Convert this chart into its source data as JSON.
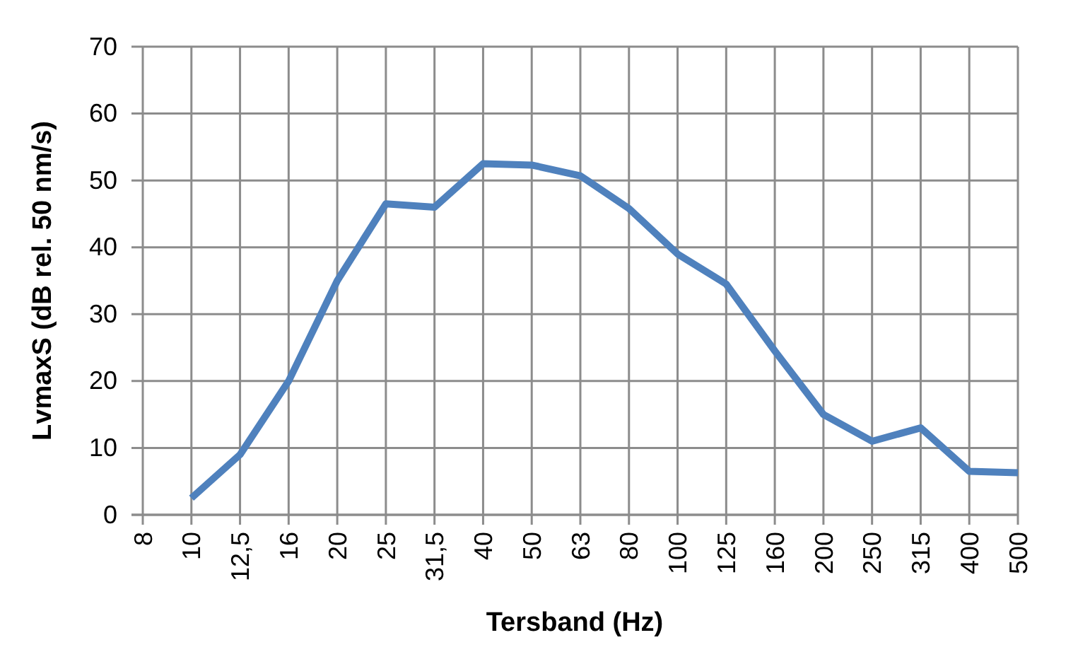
{
  "chart_data": {
    "type": "line",
    "xlabel": "Tersband (Hz)",
    "ylabel": "LvmaxS (dB rel. 50 nm/s)",
    "categories": [
      "8",
      "10",
      "12,5",
      "16",
      "20",
      "25",
      "31,5",
      "40",
      "50",
      "63",
      "80",
      "100",
      "125",
      "160",
      "200",
      "250",
      "315",
      "400",
      "500"
    ],
    "series": [
      {
        "color": "#4f81bd",
        "values": [
          null,
          2.5,
          9,
          20,
          35,
          46.5,
          46,
          52.5,
          52.3,
          50.7,
          45.8,
          39,
          34.5,
          24.5,
          15,
          11,
          13,
          6.5,
          6.3
        ]
      }
    ],
    "ylim": [
      0,
      70
    ],
    "yticks": [
      0,
      10,
      20,
      30,
      40,
      50,
      60,
      70
    ],
    "grid": true,
    "marker": "none",
    "line_style": "solid"
  }
}
